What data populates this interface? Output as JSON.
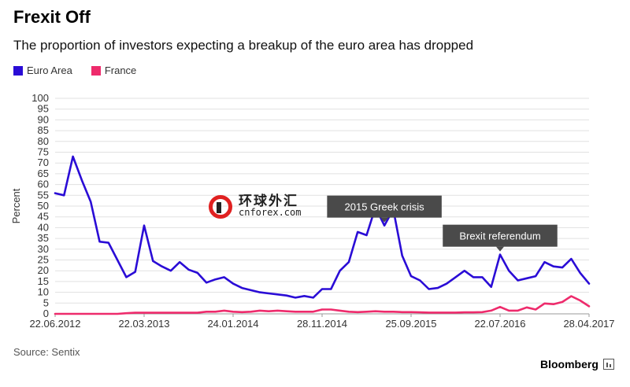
{
  "header": {
    "title": "Frexit Off",
    "subtitle": "The proportion of investors expecting a breakup of the euro area has dropped"
  },
  "footer": {
    "source": "Source: Sentix",
    "brand": "Bloomberg",
    "brand_icon": "bar-chart-icon"
  },
  "watermark": {
    "cn_text": "环球外汇",
    "en_text": "cnforex.com",
    "logo_icon": "cnforex-logo-icon"
  },
  "colors": {
    "euro_area": "#2a0cd6",
    "france": "#ee2b6c",
    "grid": "#e1e1e1",
    "annotation_bg": "#4a4a4a"
  },
  "chart_data": {
    "type": "line",
    "title": "Frexit Off",
    "subtitle": "The proportion of investors expecting a breakup of the euro area has dropped",
    "ylabel": "Percent",
    "xlabel": "",
    "ylim": [
      0,
      100
    ],
    "yticks": [
      0,
      5,
      10,
      15,
      20,
      25,
      30,
      35,
      40,
      45,
      50,
      55,
      60,
      65,
      70,
      75,
      80,
      85,
      90,
      95,
      100
    ],
    "x_tick_labels": [
      "22.06.2012",
      "22.03.2013",
      "24.01.2014",
      "28.11.2014",
      "25.09.2015",
      "22.07.2016",
      "28.04.2017"
    ],
    "grid": true,
    "legend_position": "top-left",
    "annotations": [
      {
        "text": "2015 Greek crisis",
        "point_index": 37
      },
      {
        "text": "Brexit referendum",
        "point_index": 50
      }
    ],
    "series": [
      {
        "name": "Euro Area",
        "values": [
          56,
          55,
          73,
          62,
          52,
          33.5,
          33,
          25,
          17,
          19.5,
          41,
          24.5,
          22,
          20,
          24,
          20.5,
          19,
          14.5,
          16,
          17,
          14,
          12,
          11,
          10,
          9.5,
          9,
          8.5,
          7.5,
          8.3,
          7.5,
          11.5,
          11.5,
          20,
          24,
          38,
          36.5,
          49.5,
          41,
          48.5,
          27,
          17.5,
          15.5,
          11.5,
          12,
          14,
          17,
          20,
          17,
          17,
          12.5,
          27.5,
          20,
          15.5,
          16.5,
          17.5,
          24,
          22,
          21.5,
          25.5,
          19,
          14
        ]
      },
      {
        "name": "France",
        "values": [
          0,
          0,
          0,
          0,
          0,
          0,
          0,
          0,
          0.3,
          0.5,
          0.5,
          0.5,
          0.5,
          0.5,
          0.5,
          0.5,
          0.5,
          1,
          1,
          1.5,
          1,
          0.8,
          1,
          1.5,
          1.2,
          1.5,
          1.2,
          1,
          1,
          1,
          2,
          2,
          1.5,
          1,
          0.8,
          1,
          1.2,
          1,
          1,
          0.8,
          0.8,
          0.7,
          0.6,
          0.6,
          0.6,
          0.6,
          0.7,
          0.7,
          0.8,
          1.5,
          3.2,
          1.5,
          1.5,
          3,
          2,
          4.8,
          4.5,
          5.5,
          8.2,
          6.2,
          3.5
        ]
      }
    ]
  }
}
